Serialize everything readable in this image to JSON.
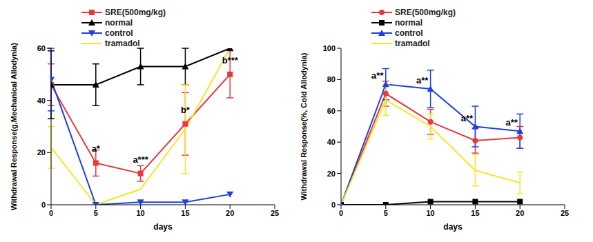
{
  "chart_data": [
    {
      "type": "line",
      "x_label": "days",
      "y_label": "Withdrawal Response(g,Mechanical Allodynia)",
      "x": [
        0,
        5,
        10,
        15,
        20
      ],
      "xlim": [
        0,
        25
      ],
      "xticks": [
        0,
        5,
        10,
        15,
        20,
        25
      ],
      "ylim": [
        0,
        60
      ],
      "yticks": [
        0,
        20,
        40,
        60
      ],
      "grid": false,
      "legend": "top",
      "series": [
        {
          "name": "SRE(500mg/kg)",
          "color": "#e8383d",
          "marker": "square",
          "values": [
            46,
            16,
            12,
            31,
            50
          ],
          "errors": [
            8,
            5,
            3,
            12,
            9
          ],
          "annotations": [
            null,
            "a*",
            "a***",
            "b*",
            "b***"
          ]
        },
        {
          "name": "normal",
          "color": "#000000",
          "marker": "triangle",
          "values": [
            46,
            46,
            53,
            53,
            60
          ],
          "errors": [
            13,
            8,
            7,
            7,
            0
          ]
        },
        {
          "name": "control",
          "color": "#1f3fe0",
          "marker": "triangle-down",
          "values": [
            48,
            0,
            1,
            1,
            4
          ],
          "errors": [
            12,
            0,
            0,
            0,
            0
          ]
        },
        {
          "name": "tramadol",
          "color": "#f5e52c",
          "marker": "none",
          "values": [
            22,
            0,
            6,
            29,
            60
          ],
          "errors": [
            8,
            0,
            0,
            17,
            0
          ]
        }
      ]
    },
    {
      "type": "line",
      "x_label": "days",
      "y_label": "Withdrawal Response(%, Cold Allodynia)",
      "x": [
        0,
        5,
        10,
        15,
        20
      ],
      "xlim": [
        0,
        25
      ],
      "xticks": [
        0,
        5,
        10,
        15,
        20,
        25
      ],
      "ylim": [
        0,
        100
      ],
      "yticks": [
        0,
        20,
        40,
        60,
        80,
        100
      ],
      "grid": false,
      "legend": "top",
      "series": [
        {
          "name": "SRE(500mg/kg)",
          "color": "#e8383d",
          "marker": "circle",
          "values": [
            0,
            71,
            53,
            41,
            43
          ],
          "errors": [
            0,
            8,
            8,
            8,
            7
          ]
        },
        {
          "name": "normal",
          "color": "#000000",
          "marker": "square",
          "values": [
            0,
            0,
            2,
            2,
            2
          ],
          "errors": [
            0,
            0,
            0,
            0,
            0
          ]
        },
        {
          "name": "control",
          "color": "#1f3fe0",
          "marker": "triangle",
          "values": [
            0,
            77,
            74,
            50,
            47
          ],
          "errors": [
            0,
            10,
            12,
            13,
            11
          ],
          "annotations": [
            null,
            "a**",
            "a**",
            "a**",
            "a**"
          ]
        },
        {
          "name": "tramadol",
          "color": "#f5e52c",
          "marker": "none",
          "values": [
            0,
            67,
            50,
            22,
            14
          ],
          "errors": [
            0,
            10,
            8,
            10,
            7
          ]
        }
      ]
    }
  ]
}
